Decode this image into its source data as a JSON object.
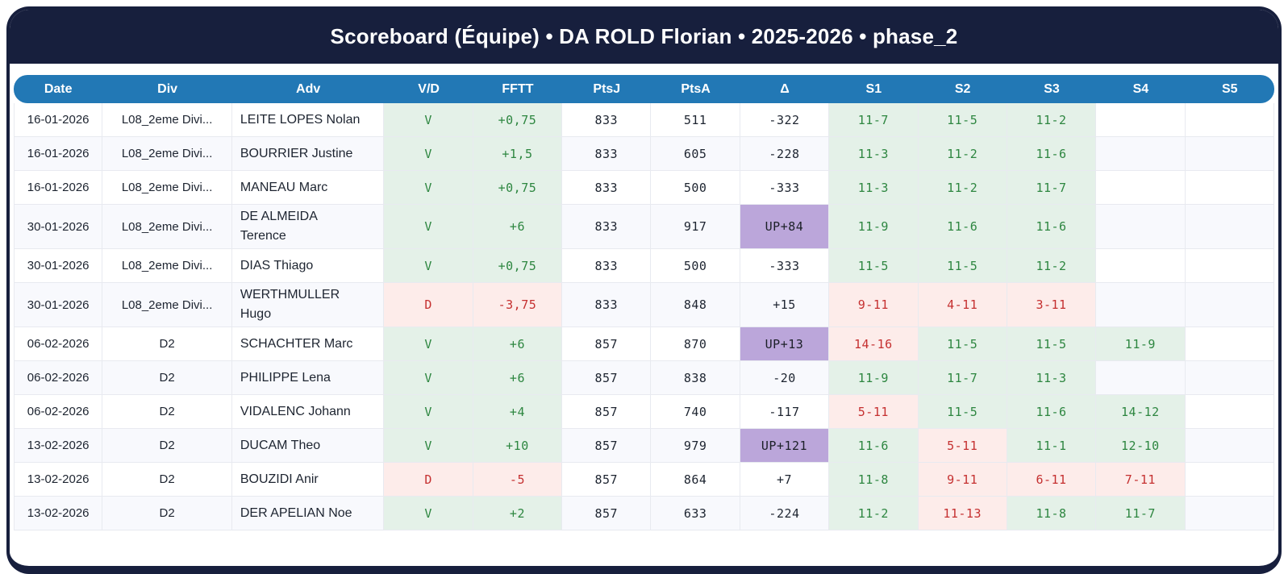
{
  "title": "Scoreboard (Équipe) • DA ROLD Florian • 2025-2026 • phase_2",
  "colors": {
    "frame_navy": "#171f3d",
    "header_blue": "#2278b5",
    "win_text": "#2d8640",
    "win_bg": "#e4f1e8",
    "loss_text": "#c53030",
    "loss_bg": "#fdecea",
    "up_bg": "#bba6da",
    "row_alt_bg": "#f8f9fd"
  },
  "table": {
    "columns": [
      "Date",
      "Div",
      "Adv",
      "V/D",
      "FFTT",
      "PtsJ",
      "PtsA",
      "Δ",
      "S1",
      "S2",
      "S3",
      "S4",
      "S5"
    ],
    "rows": [
      {
        "date": "16-01-2026",
        "div": "L08_2eme Divi...",
        "adv": "LEITE LOPES Nolan",
        "vd": "V",
        "fftt": "+0,75",
        "ptsj": "833",
        "ptsa": "511",
        "delta": "-322",
        "sets": [
          "11-7",
          "11-5",
          "11-2",
          "",
          ""
        ]
      },
      {
        "date": "16-01-2026",
        "div": "L08_2eme Divi...",
        "adv": "BOURRIER Justine",
        "vd": "V",
        "fftt": "+1,5",
        "ptsj": "833",
        "ptsa": "605",
        "delta": "-228",
        "sets": [
          "11-3",
          "11-2",
          "11-6",
          "",
          ""
        ]
      },
      {
        "date": "16-01-2026",
        "div": "L08_2eme Divi...",
        "adv": "MANEAU Marc",
        "vd": "V",
        "fftt": "+0,75",
        "ptsj": "833",
        "ptsa": "500",
        "delta": "-333",
        "sets": [
          "11-3",
          "11-2",
          "11-7",
          "",
          ""
        ]
      },
      {
        "date": "30-01-2026",
        "div": "L08_2eme Divi...",
        "adv": "DE ALMEIDA\nTerence",
        "vd": "V",
        "fftt": "+6",
        "ptsj": "833",
        "ptsa": "917",
        "delta": "UP+84",
        "sets": [
          "11-9",
          "11-6",
          "11-6",
          "",
          ""
        ]
      },
      {
        "date": "30-01-2026",
        "div": "L08_2eme Divi...",
        "adv": "DIAS Thiago",
        "vd": "V",
        "fftt": "+0,75",
        "ptsj": "833",
        "ptsa": "500",
        "delta": "-333",
        "sets": [
          "11-5",
          "11-5",
          "11-2",
          "",
          ""
        ]
      },
      {
        "date": "30-01-2026",
        "div": "L08_2eme Divi...",
        "adv": "WERTHMULLER\nHugo",
        "vd": "D",
        "fftt": "-3,75",
        "ptsj": "833",
        "ptsa": "848",
        "delta": "+15",
        "sets": [
          "9-11",
          "4-11",
          "3-11",
          "",
          ""
        ]
      },
      {
        "date": "06-02-2026",
        "div": "D2",
        "adv": "SCHACHTER Marc",
        "vd": "V",
        "fftt": "+6",
        "ptsj": "857",
        "ptsa": "870",
        "delta": "UP+13",
        "sets": [
          "14-16",
          "11-5",
          "11-5",
          "11-9",
          ""
        ]
      },
      {
        "date": "06-02-2026",
        "div": "D2",
        "adv": "PHILIPPE Lena",
        "vd": "V",
        "fftt": "+6",
        "ptsj": "857",
        "ptsa": "838",
        "delta": "-20",
        "sets": [
          "11-9",
          "11-7",
          "11-3",
          "",
          ""
        ]
      },
      {
        "date": "06-02-2026",
        "div": "D2",
        "adv": "VIDALENC Johann",
        "vd": "V",
        "fftt": "+4",
        "ptsj": "857",
        "ptsa": "740",
        "delta": "-117",
        "sets": [
          "5-11",
          "11-5",
          "11-6",
          "14-12",
          ""
        ]
      },
      {
        "date": "13-02-2026",
        "div": "D2",
        "adv": "DUCAM Theo",
        "vd": "V",
        "fftt": "+10",
        "ptsj": "857",
        "ptsa": "979",
        "delta": "UP+121",
        "sets": [
          "11-6",
          "5-11",
          "11-1",
          "12-10",
          ""
        ]
      },
      {
        "date": "13-02-2026",
        "div": "D2",
        "adv": "BOUZIDI Anir",
        "vd": "D",
        "fftt": "-5",
        "ptsj": "857",
        "ptsa": "864",
        "delta": "+7",
        "sets": [
          "11-8",
          "9-11",
          "6-11",
          "7-11",
          ""
        ]
      },
      {
        "date": "13-02-2026",
        "div": "D2",
        "adv": "DER APELIAN Noe",
        "vd": "V",
        "fftt": "+2",
        "ptsj": "857",
        "ptsa": "633",
        "delta": "-224",
        "sets": [
          "11-2",
          "11-13",
          "11-8",
          "11-7",
          ""
        ]
      }
    ]
  }
}
